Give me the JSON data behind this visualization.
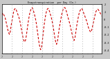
{
  "title": "Evapotranspiration  per Day (In.)",
  "bg_color": "#c8c8c8",
  "plot_bg": "#ffffff",
  "line_color": "#cc0000",
  "grid_color": "#aaaaaa",
  "text_color": "#000000",
  "y_values": [
    0.05,
    0.08,
    0.06,
    0.04,
    0.01,
    -0.04,
    -0.09,
    -0.14,
    -0.18,
    -0.2,
    -0.16,
    -0.08,
    -0.02,
    0.04,
    0.1,
    0.13,
    0.14,
    0.12,
    0.09,
    0.06,
    0.03,
    -0.01,
    -0.06,
    -0.12,
    -0.18,
    -0.24,
    -0.28,
    -0.3,
    -0.28,
    -0.22,
    -0.14,
    -0.06,
    0.01,
    0.07,
    0.11,
    0.14,
    0.15,
    0.13,
    0.09,
    0.05,
    0.0,
    -0.06,
    -0.14,
    -0.22,
    -0.3,
    -0.36,
    -0.4,
    -0.38,
    -0.3,
    -0.2,
    -0.1,
    -0.02,
    0.05,
    0.1,
    0.13,
    0.14,
    0.12,
    0.09,
    0.05,
    0.01,
    -0.04,
    -0.1,
    -0.17,
    -0.24,
    -0.3,
    -0.33,
    -0.3,
    -0.22,
    -0.14,
    -0.07,
    -0.01,
    0.05,
    0.1,
    0.13,
    0.15,
    0.15,
    0.13,
    0.09,
    0.05,
    0.01,
    -0.03,
    -0.07,
    -0.12,
    -0.17,
    -0.22,
    -0.26,
    -0.28,
    -0.24,
    -0.17,
    -0.09,
    -0.03,
    0.03,
    0.08,
    0.11,
    0.13,
    0.14,
    0.12,
    0.09,
    0.06,
    0.03,
    0.0,
    -0.03,
    -0.07,
    -0.11,
    -0.14,
    -0.16,
    -0.17,
    -0.14,
    -0.09,
    -0.04,
    0.01,
    0.06,
    0.1,
    0.12,
    0.13,
    0.12,
    0.1,
    0.08,
    0.06,
    0.04
  ],
  "ylim": [
    -0.45,
    0.2
  ],
  "yticks": [
    -0.4,
    -0.3,
    -0.2,
    -0.1,
    0.0,
    0.1,
    0.2
  ],
  "ytick_labels": [
    "-0.4",
    "-0.3",
    "-0.2",
    "-0.1",
    "0",
    ".1",
    ".2"
  ],
  "grid_positions": [
    12,
    24,
    36,
    48,
    60,
    72,
    84,
    96,
    108
  ],
  "n_points": 120
}
